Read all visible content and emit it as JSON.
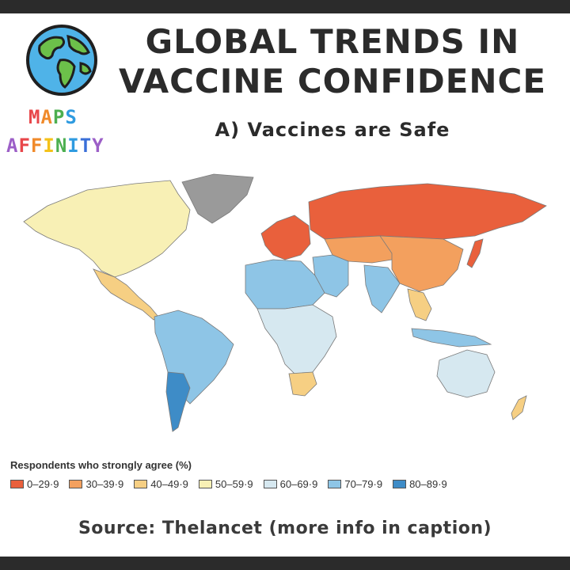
{
  "title": {
    "line1": "GLOBAL TRENDS IN",
    "line2": "VACCINE CONFIDENCE"
  },
  "subtitle": "A) Vaccines are Safe",
  "brand": {
    "word1": [
      "M",
      "A",
      "P",
      "S"
    ],
    "word2": [
      "A",
      "F",
      "F",
      "I",
      "N",
      "I",
      "T",
      "Y"
    ],
    "word1_colors": [
      "#e8464a",
      "#f08a2a",
      "#4caf50",
      "#2f9be0"
    ],
    "word2_colors": [
      "#9c5fc7",
      "#e8464a",
      "#f08a2a",
      "#f4c21a",
      "#4caf50",
      "#2f9be0",
      "#3a6fd8",
      "#9c5fc7"
    ],
    "icon": "globe-icon"
  },
  "legend": {
    "title": "Respondents who strongly agree (%)",
    "items": [
      {
        "label": "0–29·9",
        "color": "#e9603c"
      },
      {
        "label": "30–39·9",
        "color": "#f3a05e"
      },
      {
        "label": "40–49·9",
        "color": "#f6cf83"
      },
      {
        "label": "50–59·9",
        "color": "#f8f0b5"
      },
      {
        "label": "60–69·9",
        "color": "#d6e8f0"
      },
      {
        "label": "70–79·9",
        "color": "#8ec5e6"
      },
      {
        "label": "80–89·9",
        "color": "#3e8cc7"
      }
    ]
  },
  "map": {
    "no_data_color": "#9a9a9a",
    "regions": [
      {
        "name": "North America",
        "band": "50–59·9"
      },
      {
        "name": "Greenland",
        "band": "no data"
      },
      {
        "name": "Mexico",
        "band": "40–49·9"
      },
      {
        "name": "South America",
        "band": "70–79·9"
      },
      {
        "name": "Argentina",
        "band": "80–89·9"
      },
      {
        "name": "Western Europe",
        "band": "0–29·9"
      },
      {
        "name": "Russia",
        "band": "0–29·9"
      },
      {
        "name": "Central Asia",
        "band": "30–39·9"
      },
      {
        "name": "China",
        "band": "30–39·9"
      },
      {
        "name": "Japan",
        "band": "0–29·9"
      },
      {
        "name": "North Africa",
        "band": "70–79·9"
      },
      {
        "name": "Central Africa",
        "band": "60–69·9"
      },
      {
        "name": "South Africa",
        "band": "40–49·9"
      },
      {
        "name": "India",
        "band": "70–79·9"
      },
      {
        "name": "Southeast Asia",
        "band": "40–49·9"
      },
      {
        "name": "Australia",
        "band": "60–69·9"
      },
      {
        "name": "New Zealand",
        "band": "40–49·9"
      }
    ]
  },
  "source": "Source: Thelancet (more info in caption)"
}
